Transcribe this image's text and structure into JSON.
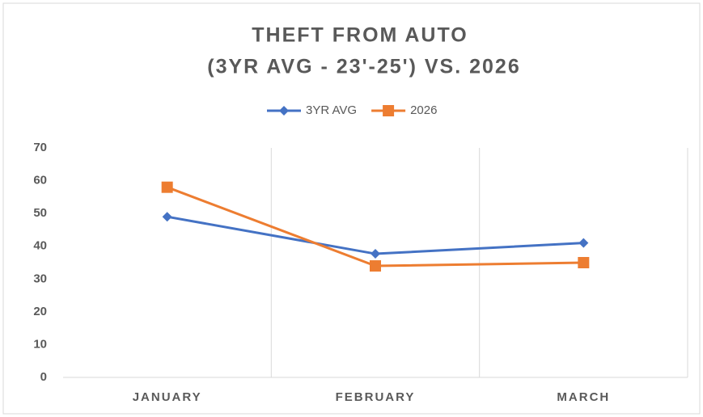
{
  "chart_data": {
    "type": "line",
    "title": [
      "THEFT FROM AUTO",
      "(3YR AVG - 23'-25') VS. 2026"
    ],
    "categories": [
      "JANUARY",
      "FEBRUARY",
      "MARCH"
    ],
    "series": [
      {
        "name": "3YR AVG",
        "color": "#4472c4",
        "marker": "diamond",
        "values": [
          49,
          37.7,
          41
        ]
      },
      {
        "name": "2026",
        "color": "#ed7d31",
        "marker": "square",
        "values": [
          58,
          34,
          35
        ]
      }
    ],
    "ylim": [
      0,
      70
    ],
    "yticks": [
      0,
      10,
      20,
      30,
      40,
      50,
      60,
      70
    ],
    "xgrid": true,
    "legend": "top"
  }
}
